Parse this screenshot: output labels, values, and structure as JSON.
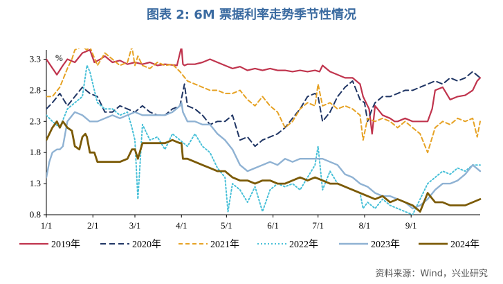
{
  "title": "图表 2:  6M 票据利率走势季节性情况",
  "source": "资料来源：Wind，兴业研究",
  "chart_data": {
    "type": "line",
    "unit_label": "%",
    "ylim": [
      0.8,
      3.45
    ],
    "yticks": [
      3.3,
      2.8,
      2.3,
      1.8,
      1.3,
      0.8
    ],
    "ytick_labels": [
      "3.3",
      "2.8",
      "2.3",
      "1.8",
      "1.3",
      "0.8"
    ],
    "x_label_positions": [
      1,
      32,
      60,
      91,
      121,
      152,
      182,
      213,
      244
    ],
    "xticks": [
      "1/1",
      "2/1",
      "3/1",
      "4/1",
      "5/1",
      "6/1",
      "7/1",
      "8/1",
      "9/1"
    ],
    "xlim": [
      1,
      290
    ],
    "series": [
      {
        "name": "2019年",
        "color": "#c0344d",
        "dash": "solid",
        "width": 2.2,
        "x": [
          1,
          8,
          12,
          15,
          20,
          25,
          30,
          33,
          37,
          40,
          45,
          50,
          55,
          60,
          65,
          70,
          75,
          80,
          88,
          91,
          92,
          93,
          95,
          100,
          105,
          110,
          115,
          120,
          125,
          130,
          135,
          140,
          145,
          150,
          155,
          160,
          165,
          170,
          175,
          180,
          183,
          185,
          190,
          195,
          200,
          205,
          210,
          212,
          214,
          216,
          218,
          220,
          225,
          230,
          233,
          235,
          240,
          245,
          250,
          255,
          258,
          260,
          265,
          270,
          275,
          280,
          285,
          288,
          290
        ],
        "y": [
          3.3,
          3.05,
          3.2,
          3.3,
          3.25,
          3.4,
          3.45,
          3.25,
          3.3,
          3.35,
          3.25,
          3.28,
          3.22,
          3.25,
          3.22,
          3.25,
          3.2,
          3.22,
          3.2,
          3.5,
          3.22,
          3.2,
          3.22,
          3.22,
          3.25,
          3.3,
          3.25,
          3.2,
          3.15,
          3.18,
          3.12,
          3.15,
          3.12,
          3.15,
          3.12,
          3.12,
          3.1,
          3.12,
          3.1,
          3.12,
          3.1,
          3.2,
          3.1,
          3.05,
          3.0,
          3.0,
          2.9,
          2.7,
          2.6,
          2.5,
          2.1,
          2.55,
          2.4,
          2.35,
          2.3,
          2.3,
          2.35,
          2.3,
          2.3,
          2.3,
          2.5,
          2.8,
          2.85,
          2.65,
          2.7,
          2.72,
          2.8,
          2.95,
          3.0
        ]
      },
      {
        "name": "2020年",
        "color": "#1f3564",
        "dash": "8,5",
        "width": 2.0,
        "x": [
          1,
          5,
          10,
          15,
          20,
          25,
          30,
          35,
          40,
          45,
          50,
          55,
          60,
          65,
          70,
          75,
          80,
          85,
          90,
          93,
          95,
          100,
          105,
          110,
          115,
          120,
          125,
          130,
          135,
          140,
          145,
          150,
          155,
          160,
          165,
          170,
          175,
          180,
          182,
          185,
          190,
          195,
          200,
          205,
          210,
          213,
          215,
          218,
          220,
          225,
          230,
          235,
          240,
          245,
          250,
          255,
          260,
          265,
          270,
          275,
          280,
          285,
          290
        ],
        "y": [
          2.5,
          2.6,
          2.75,
          2.55,
          2.7,
          2.85,
          2.75,
          2.7,
          2.45,
          2.45,
          2.55,
          2.5,
          2.45,
          2.55,
          2.45,
          2.4,
          2.4,
          2.5,
          2.55,
          2.9,
          2.55,
          2.5,
          2.4,
          2.25,
          2.3,
          2.3,
          2.4,
          2.0,
          2.05,
          1.9,
          2.0,
          2.05,
          2.1,
          2.2,
          2.35,
          2.5,
          2.7,
          2.75,
          2.7,
          2.3,
          2.45,
          2.7,
          2.85,
          2.95,
          2.65,
          2.6,
          2.3,
          2.5,
          2.6,
          2.7,
          2.7,
          2.75,
          2.8,
          2.8,
          2.85,
          2.9,
          2.95,
          2.9,
          3.0,
          2.95,
          3.0,
          3.1,
          3.0
        ]
      },
      {
        "name": "2021年",
        "color": "#e6a224",
        "dash": "6,4",
        "width": 2.0,
        "x": [
          1,
          5,
          10,
          15,
          18,
          20,
          25,
          28,
          30,
          35,
          40,
          45,
          50,
          55,
          58,
          60,
          62,
          65,
          70,
          75,
          80,
          85,
          90,
          95,
          100,
          105,
          110,
          115,
          120,
          125,
          130,
          135,
          140,
          145,
          150,
          155,
          160,
          165,
          170,
          175,
          180,
          182,
          185,
          190,
          195,
          200,
          205,
          210,
          212,
          215,
          220,
          225,
          230,
          235,
          240,
          245,
          250,
          255,
          260,
          265,
          270,
          275,
          280,
          285,
          288,
          290
        ],
        "y": [
          2.7,
          2.7,
          2.85,
          3.15,
          3.3,
          3.45,
          3.5,
          3.45,
          3.5,
          3.2,
          3.4,
          3.3,
          3.2,
          3.25,
          3.5,
          3.2,
          3.35,
          3.2,
          3.15,
          3.25,
          3.2,
          3.22,
          3.1,
          2.95,
          2.9,
          2.85,
          2.8,
          2.8,
          2.75,
          2.75,
          2.8,
          2.65,
          2.55,
          2.7,
          2.55,
          2.45,
          2.2,
          2.3,
          2.5,
          2.6,
          2.55,
          2.9,
          2.55,
          2.6,
          2.5,
          2.55,
          2.5,
          2.4,
          2.0,
          2.35,
          2.3,
          2.35,
          2.3,
          2.2,
          2.3,
          2.2,
          2.1,
          1.8,
          2.2,
          2.3,
          2.25,
          2.35,
          2.3,
          2.35,
          2.05,
          2.3
        ]
      },
      {
        "name": "2022年",
        "color": "#48c0d8",
        "dash": "2,3",
        "width": 2.0,
        "x": [
          1,
          5,
          10,
          15,
          20,
          25,
          28,
          30,
          33,
          35,
          40,
          45,
          50,
          55,
          58,
          60,
          62,
          65,
          70,
          75,
          80,
          85,
          90,
          95,
          100,
          105,
          110,
          115,
          120,
          122,
          125,
          130,
          135,
          140,
          145,
          150,
          155,
          160,
          165,
          170,
          175,
          180,
          182,
          185,
          190,
          195,
          200,
          205,
          210,
          212,
          215,
          220,
          225,
          230,
          235,
          240,
          245,
          250,
          255,
          260,
          265,
          270,
          275,
          280,
          285,
          290
        ],
        "y": [
          2.4,
          2.3,
          2.2,
          2.5,
          2.6,
          2.7,
          3.2,
          3.1,
          2.8,
          2.6,
          2.5,
          2.5,
          2.4,
          2.45,
          2.2,
          2.0,
          1.05,
          2.25,
          2.0,
          2.05,
          1.85,
          2.1,
          2.0,
          1.9,
          2.1,
          1.9,
          1.8,
          1.55,
          1.4,
          0.85,
          1.3,
          1.2,
          1.0,
          1.25,
          0.85,
          1.2,
          1.3,
          1.25,
          1.3,
          1.2,
          1.4,
          1.6,
          1.9,
          1.2,
          1.5,
          1.3,
          1.25,
          1.2,
          1.15,
          0.9,
          1.0,
          0.9,
          1.05,
          0.95,
          0.9,
          0.85,
          0.8,
          1.05,
          1.3,
          1.4,
          1.5,
          1.45,
          1.55,
          1.5,
          1.6,
          1.6
        ]
      },
      {
        "name": "2023年",
        "color": "#8fb2d3",
        "dash": "solid",
        "width": 2.4,
        "x": [
          1,
          3,
          5,
          8,
          10,
          12,
          15,
          20,
          25,
          30,
          35,
          40,
          45,
          50,
          55,
          60,
          65,
          70,
          75,
          80,
          85,
          90,
          91,
          92,
          95,
          100,
          105,
          110,
          115,
          120,
          125,
          130,
          135,
          140,
          145,
          150,
          155,
          160,
          165,
          170,
          175,
          180,
          185,
          190,
          195,
          200,
          205,
          210,
          215,
          220,
          225,
          230,
          235,
          240,
          245,
          250,
          255,
          260,
          265,
          270,
          275,
          280,
          285,
          290
        ],
        "y": [
          1.4,
          1.65,
          1.8,
          1.85,
          1.85,
          1.9,
          2.3,
          2.45,
          2.4,
          2.3,
          2.3,
          2.35,
          2.4,
          2.35,
          2.4,
          2.45,
          2.4,
          2.4,
          2.4,
          2.4,
          2.45,
          2.55,
          2.6,
          2.45,
          2.3,
          2.3,
          2.25,
          2.25,
          2.1,
          2.0,
          1.85,
          1.6,
          1.5,
          1.55,
          1.6,
          1.65,
          1.6,
          1.7,
          1.65,
          1.7,
          1.7,
          1.7,
          1.7,
          1.65,
          1.6,
          1.45,
          1.4,
          1.3,
          1.25,
          1.15,
          1.1,
          1.1,
          1.05,
          1.0,
          0.9,
          0.95,
          1.05,
          1.2,
          1.3,
          1.3,
          1.35,
          1.45,
          1.6,
          1.5
        ]
      },
      {
        "name": "2024年",
        "color": "#7b5a06",
        "dash": "solid",
        "width": 2.8,
        "x": [
          1,
          5,
          8,
          10,
          12,
          15,
          18,
          20,
          23,
          25,
          27,
          28,
          30,
          33,
          35,
          40,
          45,
          50,
          55,
          58,
          60,
          62,
          65,
          70,
          75,
          80,
          85,
          90,
          91,
          92,
          95,
          100,
          105,
          110,
          115,
          120,
          125,
          130,
          135,
          140,
          145,
          150,
          155,
          160,
          165,
          170,
          175,
          180,
          185,
          190,
          195,
          200,
          205,
          210,
          215,
          220,
          225,
          230,
          235,
          240,
          245,
          250,
          255,
          260,
          265,
          270,
          275,
          280,
          285,
          290
        ],
        "y": [
          2.0,
          2.2,
          2.3,
          2.2,
          2.3,
          2.2,
          2.15,
          1.9,
          1.85,
          2.05,
          2.1,
          2.05,
          1.8,
          1.8,
          1.65,
          1.65,
          1.65,
          1.65,
          1.7,
          1.85,
          1.85,
          1.7,
          1.95,
          1.95,
          1.95,
          1.95,
          2.0,
          1.95,
          1.95,
          1.7,
          1.7,
          1.65,
          1.6,
          1.55,
          1.5,
          1.5,
          1.4,
          1.35,
          1.35,
          1.3,
          1.35,
          1.35,
          1.3,
          1.3,
          1.35,
          1.4,
          1.35,
          1.4,
          1.35,
          1.3,
          1.3,
          1.25,
          1.2,
          1.15,
          1.1,
          1.05,
          1.1,
          1.0,
          1.05,
          1.0,
          0.95,
          0.85,
          1.15,
          1.0,
          1.0,
          0.95,
          0.95,
          0.95,
          1.0,
          1.05
        ]
      }
    ]
  }
}
